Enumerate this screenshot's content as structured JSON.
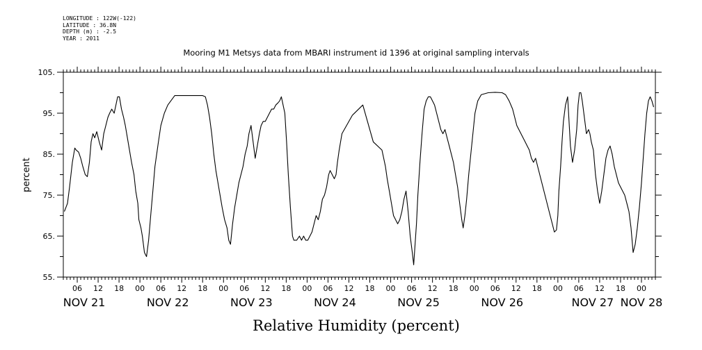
{
  "header": {
    "longitude": "LONGITUDE : 122W(-122)",
    "latitude": "LATITUDE : 36.8N",
    "depth": "DEPTH (m) : -2.5",
    "year": "YEAR : 2011"
  },
  "chart_data": {
    "type": "line",
    "title": "Mooring M1 Metsys data from MBARI instrument id 1396 at original sampling intervals",
    "xlabel": "Relative Humidity (percent)",
    "ylabel": "percent",
    "ylim": [
      55,
      105
    ],
    "xlim": [
      2,
      172
    ],
    "x_unit_note": "hours since NOV 21 00:00",
    "y_ticks": [
      "55.",
      "65.",
      "75.",
      "85.",
      "95.",
      "105."
    ],
    "y_tick_values": [
      55,
      65,
      75,
      85,
      95,
      105
    ],
    "x_hour_labels": [
      "06",
      "12",
      "18",
      "00",
      "06",
      "12",
      "18",
      "00",
      "06",
      "12",
      "18",
      "00",
      "06",
      "12",
      "18",
      "00",
      "06",
      "12",
      "18",
      "00",
      "06",
      "12",
      "18",
      "00",
      "06",
      "12",
      "18",
      "00"
    ],
    "x_hour_values": [
      6,
      12,
      18,
      24,
      30,
      36,
      42,
      48,
      54,
      60,
      66,
      72,
      78,
      84,
      90,
      96,
      102,
      108,
      114,
      120,
      126,
      132,
      138,
      144,
      150,
      156,
      162,
      168
    ],
    "day_labels": [
      {
        "label": "NOV 21",
        "x": 8
      },
      {
        "label": "NOV 22",
        "x": 32
      },
      {
        "label": "NOV 23",
        "x": 56
      },
      {
        "label": "NOV 24",
        "x": 80
      },
      {
        "label": "NOV 25",
        "x": 104
      },
      {
        "label": "NOV 26",
        "x": 128
      },
      {
        "label": "NOV 27",
        "x": 154
      },
      {
        "label": "NOV 28",
        "x": 168
      }
    ],
    "series": [
      {
        "x": [
          2.3,
          3.2,
          3.8,
          4.6,
          5.3,
          5.7,
          6.4,
          7,
          7.6,
          8.3,
          8.9,
          9.5,
          10,
          10.5,
          11,
          11.6,
          12.3,
          13,
          13.6,
          14.2,
          14.8,
          15.3,
          15.9,
          16.6,
          17.1,
          17.6,
          18.1,
          18.7,
          19.3,
          19.8,
          20.4,
          21,
          21.6,
          22.3,
          22.8,
          23.4,
          23.7,
          24.3,
          24.7,
          25.3,
          25.9,
          26.5,
          27.1,
          27.7,
          28.3,
          28.8,
          29.3,
          30,
          31,
          32,
          34,
          36,
          38,
          40,
          42,
          42.8,
          43.4,
          44,
          44.6,
          45.2,
          45.8,
          46.4,
          47,
          47.6,
          48.3,
          49,
          49.5,
          50,
          50.6,
          51.2,
          51.8,
          52.4,
          53,
          53.6,
          54.2,
          54.8,
          55.3,
          55.9,
          56.5,
          57.1,
          57.7,
          58.3,
          58.8,
          59.4,
          60,
          60.6,
          61.2,
          61.8,
          62.4,
          63,
          63.6,
          64.1,
          64.6,
          65.1,
          65.6,
          66.1,
          66.6,
          67.2,
          67.8,
          68.2,
          69,
          69.8,
          70.4,
          71,
          71.6,
          72.2,
          72.8,
          73.4,
          74,
          74.6,
          75.2,
          75.8,
          76.4,
          77,
          77.6,
          78.2,
          78.6,
          79.2,
          79.8,
          80.3,
          80.7,
          81.2,
          81.6,
          82,
          85,
          88,
          91,
          93.5,
          94,
          94.5,
          95,
          95.6,
          96.2,
          96.8,
          97.4,
          98,
          98.6,
          99.2,
          99.8,
          100.4,
          101,
          101.6,
          102.2,
          102.6,
          103,
          103.4,
          103.8,
          104.4,
          105,
          105.6,
          106.2,
          106.8,
          107.4,
          108,
          108.6,
          109.2,
          109.8,
          110.4,
          111,
          111.6,
          112.2,
          112.8,
          113.4,
          114,
          114.6,
          115.2,
          115.8,
          116.4,
          116.8,
          117.3,
          117.8,
          118.4,
          119,
          119.6,
          120.2,
          121,
          122,
          124,
          126,
          128,
          129,
          130,
          131,
          131.6,
          132.2,
          132.8,
          133.4,
          134,
          134.6,
          135.2,
          135.8,
          136.4,
          137,
          137.6,
          138.2,
          138.8,
          139.4,
          140,
          140.6,
          141.2,
          141.8,
          142.4,
          143,
          143.6,
          144,
          144.3,
          144.8,
          145.2,
          145.6,
          146.2,
          146.8,
          147.2,
          147.6,
          148.2,
          148.8,
          149.4,
          149.8,
          150.2,
          150.6,
          151,
          151.6,
          152.2,
          152.8,
          153.2,
          153.6,
          154.2,
          154.8,
          155.4,
          156,
          156.6,
          157.2,
          157.8,
          158.4,
          159,
          159.6,
          160.2,
          160.8,
          161.4,
          162,
          162.6,
          163.2,
          163.8,
          164.4,
          165,
          165.6,
          166.2,
          166.8,
          167.4,
          168,
          168.5,
          169,
          169.5,
          170,
          170.5,
          171,
          171.5
        ],
        "y": [
          71,
          73,
          77,
          83,
          86.5,
          86,
          85.5,
          84,
          82,
          80,
          79.5,
          83,
          88,
          90,
          89,
          90.5,
          88,
          86,
          90,
          92,
          94,
          95,
          96,
          95,
          97,
          99,
          99,
          96,
          94,
          92,
          89,
          86,
          83,
          80,
          76,
          73,
          69,
          67,
          65,
          61,
          60,
          64,
          70,
          76,
          82,
          85,
          88,
          92,
          95,
          97,
          99.3,
          99.3,
          99.3,
          99.3,
          99.3,
          99,
          97,
          94,
          90,
          85,
          81,
          78,
          75,
          72,
          69,
          67,
          64,
          63,
          68,
          72,
          75,
          78,
          80,
          82,
          85,
          87,
          90,
          92,
          88,
          84,
          87,
          90,
          92,
          93,
          93,
          94,
          95,
          96,
          96,
          97,
          97.5,
          98,
          99,
          97,
          95,
          88,
          80,
          72,
          65,
          64,
          64,
          65,
          64,
          65,
          64,
          64,
          65,
          66,
          68,
          70,
          69,
          71,
          74,
          75,
          77,
          80,
          81,
          80,
          79,
          80,
          83,
          86,
          88,
          90,
          94.5,
          97,
          88,
          86,
          84,
          82,
          79,
          76,
          73,
          70,
          69,
          68,
          69,
          71,
          74,
          76,
          71,
          65,
          61,
          58,
          63,
          68,
          75,
          83,
          90,
          96,
          98,
          99,
          99,
          98,
          97,
          95,
          93,
          91,
          90,
          91,
          89,
          87,
          85,
          83,
          80,
          77,
          73,
          69,
          67,
          70,
          74,
          80,
          85,
          90,
          95,
          98,
          99.5,
          100,
          100.1,
          100,
          99.5,
          98,
          96,
          94,
          92,
          91,
          90,
          89,
          88,
          87,
          86,
          84,
          83,
          84,
          82,
          80,
          78,
          76,
          74,
          72,
          70,
          68,
          66,
          66.5,
          70,
          76,
          82,
          88,
          93,
          97,
          99,
          93,
          87,
          83,
          86,
          91,
          97,
          100,
          100,
          98,
          94,
          90,
          91,
          90,
          88,
          86,
          80,
          76,
          73,
          76,
          80,
          84,
          86,
          87,
          85,
          82,
          80,
          78,
          77,
          76,
          75,
          73,
          71,
          67,
          61,
          63,
          67,
          72,
          78,
          84,
          90,
          95,
          98,
          99,
          98,
          96.5
        ]
      }
    ]
  }
}
